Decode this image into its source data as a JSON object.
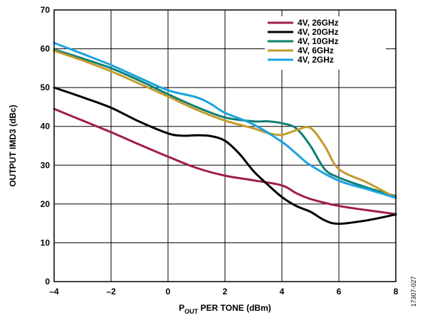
{
  "chart_data": {
    "type": "line",
    "xlabel_main": "P",
    "xlabel_sub": "OUT",
    "xlabel_rest": " PER TONE (dBm)",
    "ylabel": "OUTPUT IMD3 (dBc)",
    "xlim": [
      -4,
      8
    ],
    "ylim": [
      0,
      70
    ],
    "x_ticks": [
      -4,
      -2,
      0,
      2,
      4,
      6,
      8
    ],
    "x_tick_labels": [
      "–4",
      "–2",
      "0",
      "2",
      "4",
      "6",
      "8"
    ],
    "y_ticks": [
      0,
      10,
      20,
      30,
      40,
      50,
      60,
      70
    ],
    "y_tick_labels": [
      "0",
      "10",
      "20",
      "30",
      "40",
      "50",
      "60",
      "70"
    ],
    "grid": true,
    "legend_position": "top-right",
    "figure_id": "17307-027",
    "series": [
      {
        "name": "4V, 26GHz",
        "color": "#a01c4c",
        "points": [
          [
            -4,
            44.5
          ],
          [
            -3,
            41.5
          ],
          [
            -2,
            38.5
          ],
          [
            -1,
            35.3
          ],
          [
            0,
            32.2
          ],
          [
            1,
            29.3
          ],
          [
            2,
            27.3
          ],
          [
            3,
            26.1
          ],
          [
            4,
            24.8
          ],
          [
            4.5,
            22.8
          ],
          [
            5,
            21.3
          ],
          [
            6,
            19.5
          ],
          [
            7,
            18.4
          ],
          [
            8,
            17.4
          ]
        ]
      },
      {
        "name": "4V, 20GHz",
        "color": "#000000",
        "points": [
          [
            -4,
            50
          ],
          [
            -3,
            47.5
          ],
          [
            -2,
            44.8
          ],
          [
            -1,
            41.2
          ],
          [
            0,
            38.2
          ],
          [
            0.5,
            37.6
          ],
          [
            1,
            37.7
          ],
          [
            1.5,
            37.5
          ],
          [
            2,
            36.3
          ],
          [
            2.5,
            33.0
          ],
          [
            3,
            28.5
          ],
          [
            3.5,
            25.0
          ],
          [
            4,
            21.8
          ],
          [
            4.5,
            19.5
          ],
          [
            5,
            18.0
          ],
          [
            5.5,
            15.8
          ],
          [
            6,
            14.9
          ],
          [
            7,
            15.8
          ],
          [
            8,
            17.3
          ]
        ]
      },
      {
        "name": "4V, 10GHz",
        "color": "#0f7f72",
        "points": [
          [
            -4,
            59.8
          ],
          [
            -3,
            57.5
          ],
          [
            -2,
            55.0
          ],
          [
            -1,
            51.8
          ],
          [
            0,
            48.3
          ],
          [
            1,
            45.0
          ],
          [
            2,
            42.3
          ],
          [
            3,
            41.3
          ],
          [
            3.5,
            41.3
          ],
          [
            4,
            40.8
          ],
          [
            4.5,
            39.5
          ],
          [
            5,
            35.0
          ],
          [
            5.5,
            29.0
          ],
          [
            6,
            26.8
          ],
          [
            7,
            24.2
          ],
          [
            8,
            22.0
          ]
        ]
      },
      {
        "name": "4V, 6GHz",
        "color": "#c49a2c",
        "points": [
          [
            -4,
            59.5
          ],
          [
            -3,
            57.0
          ],
          [
            -2,
            54.2
          ],
          [
            -1,
            51.0
          ],
          [
            0,
            47.7
          ],
          [
            1,
            44.3
          ],
          [
            2,
            41.5
          ],
          [
            3,
            39.5
          ],
          [
            3.5,
            38.3
          ],
          [
            4,
            37.8
          ],
          [
            4.5,
            39.0
          ],
          [
            5,
            39.6
          ],
          [
            5.5,
            35.0
          ],
          [
            6,
            29.0
          ],
          [
            7,
            25.5
          ],
          [
            8,
            21.6
          ]
        ]
      },
      {
        "name": "4V, 2GHz",
        "color": "#1aa3dd",
        "points": [
          [
            -4,
            61.5
          ],
          [
            -3,
            58.7
          ],
          [
            -2,
            55.8
          ],
          [
            -1,
            52.5
          ],
          [
            0,
            49.3
          ],
          [
            1,
            47.5
          ],
          [
            1.5,
            45.8
          ],
          [
            2,
            43.5
          ],
          [
            3,
            40.5
          ],
          [
            4,
            36.0
          ],
          [
            4.5,
            33.0
          ],
          [
            5,
            30.0
          ],
          [
            6,
            26.0
          ],
          [
            7,
            23.8
          ],
          [
            8,
            21.6
          ]
        ]
      }
    ]
  }
}
